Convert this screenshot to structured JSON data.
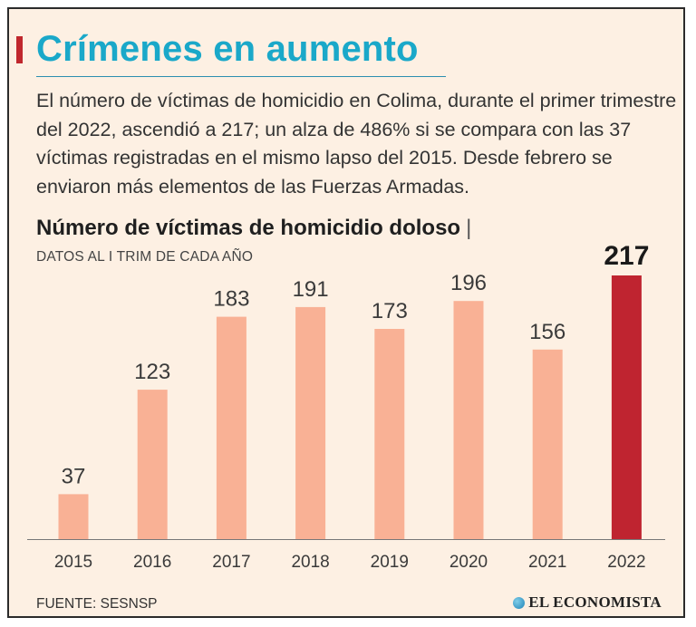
{
  "header": {
    "title": "Crímenes en aumento",
    "intro": "El número de víctimas de homicidio en Colima, durante el primer trimestre del 2022, ascendió a 217; un alza de 486% si se compara con las 37 víctimas registradas en el mismo lapso del 2015. Desde febrero se enviaron más elementos de las Fuerzas Armadas."
  },
  "chart_data": {
    "type": "bar",
    "title": "Número de víctimas de homicidio doloso",
    "title_separator": "|",
    "subtitle": "DATOS AL I TRIM DE CADA AÑO",
    "categories": [
      "2015",
      "2016",
      "2017",
      "2018",
      "2019",
      "2020",
      "2021",
      "2022"
    ],
    "values": [
      37,
      123,
      183,
      191,
      173,
      196,
      156,
      217
    ],
    "labels": [
      "37",
      "123",
      "183",
      "191",
      "173",
      "196",
      "156",
      "217"
    ],
    "highlight_index": 7,
    "ylim": [
      0,
      217
    ],
    "grid": false,
    "xlabel": "",
    "ylabel": "",
    "colors": {
      "bar": "#f9b195",
      "highlight": "#bf2430",
      "baseline": "#777777"
    }
  },
  "footer": {
    "source": "FUENTE: SESNSP",
    "brand": "EL ECONOMISTA",
    "brand_icon": "globe-icon"
  }
}
